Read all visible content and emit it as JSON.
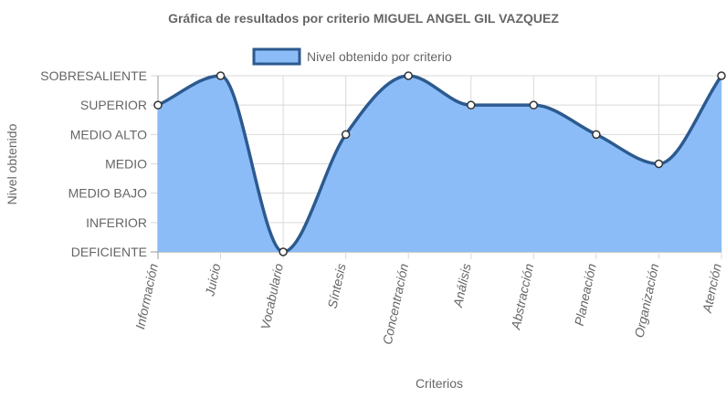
{
  "chart_data": {
    "type": "line",
    "title": "Gráfica de resultados por criterio MIGUEL ANGEL GIL VAZQUEZ",
    "xlabel": "Criterios",
    "ylabel": "Nivel obtenido",
    "categories": [
      "Información",
      "Juicio",
      "Vocabulario",
      "Síntesis",
      "Concentración",
      "Análisis",
      "Abstracción",
      "Planeación",
      "Organización",
      "Atención"
    ],
    "y_levels": [
      "DEFICIENTE",
      "INFERIOR",
      "MEDIO BAJO",
      "MEDIO",
      "MEDIO ALTO",
      "SUPERIOR",
      "SOBRESALIENTE"
    ],
    "ylim": [
      0,
      6
    ],
    "series": [
      {
        "name": "Nivel obtenido por criterio",
        "values": [
          5,
          6,
          0,
          4,
          6,
          5,
          5,
          4,
          3,
          6
        ],
        "fill_color": "#8bbcf7",
        "line_color": "#2c5a8f",
        "point_color": "#ffffff"
      }
    ],
    "legend_position": "top",
    "grid": true,
    "curve": "smooth",
    "filled": true
  }
}
